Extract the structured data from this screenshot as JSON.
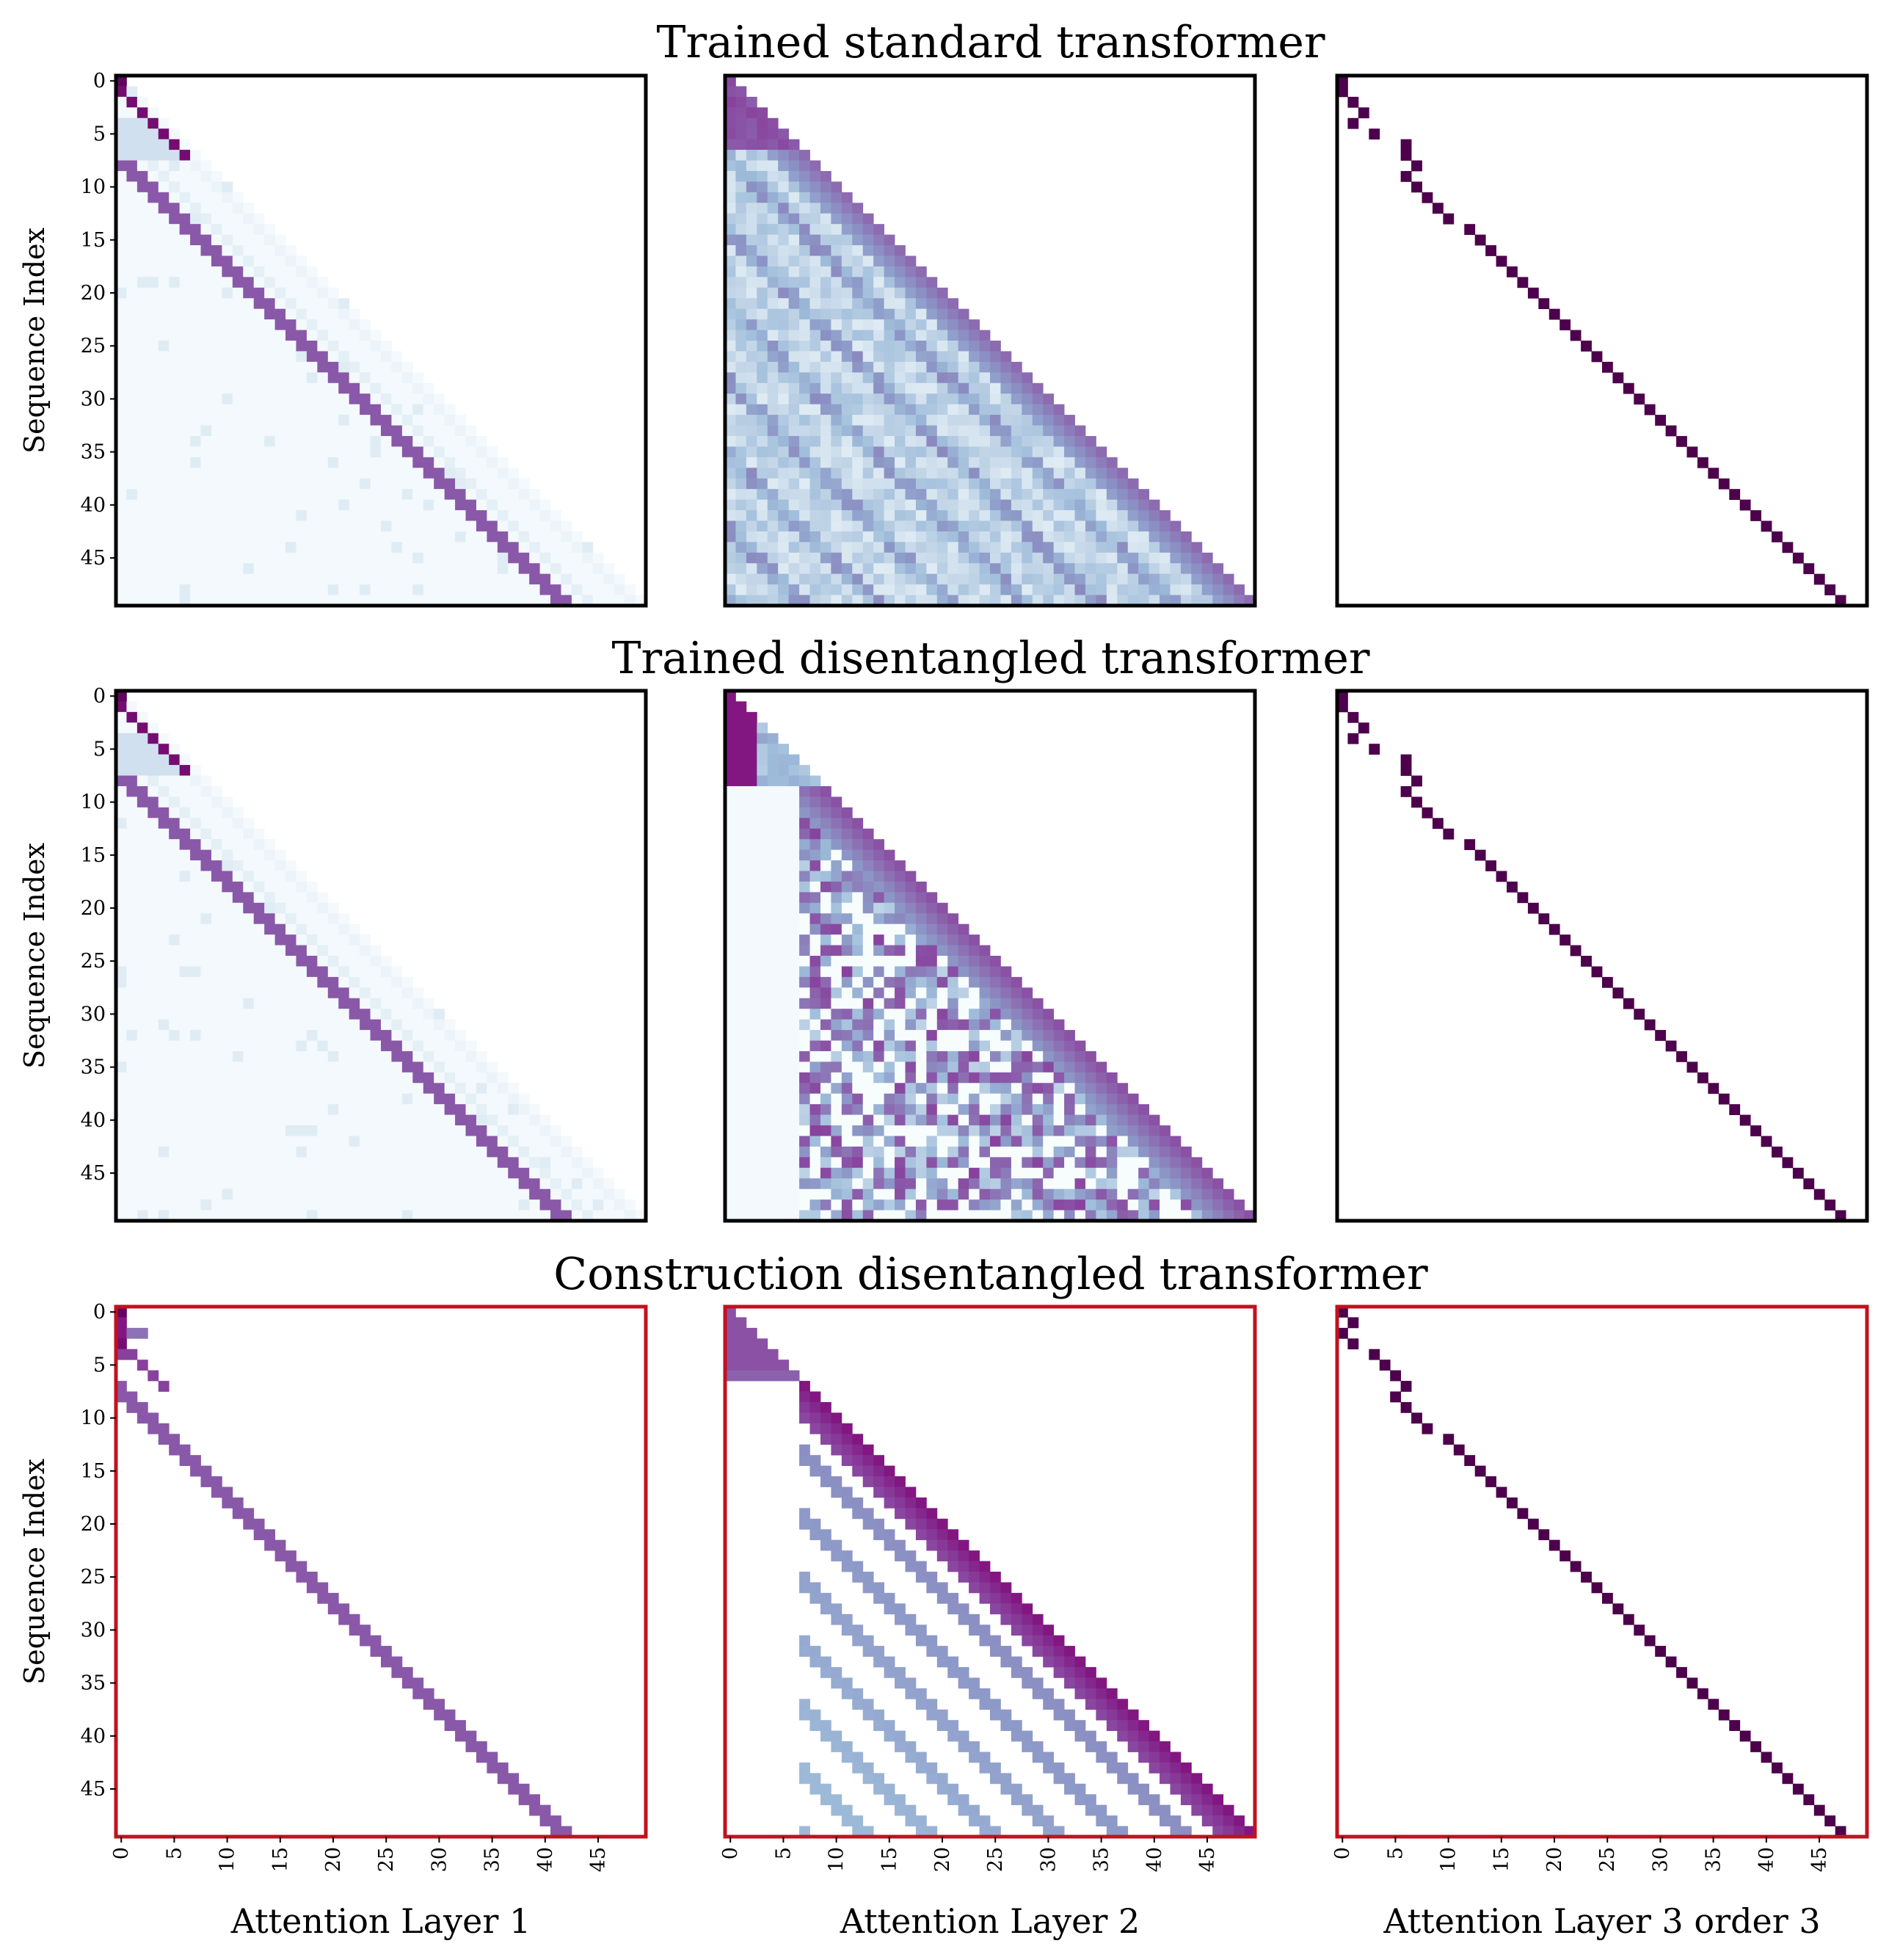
{
  "chart_data": {
    "type": "heatmap",
    "colormap": "BuPu",
    "sequence_length": 50,
    "tick_labels": [
      "0",
      "5",
      "10",
      "15",
      "20",
      "25",
      "30",
      "35",
      "40",
      "45"
    ],
    "ylabel": "Sequence Index",
    "column_labels": [
      "Attention Layer 1",
      "Attention Layer 2",
      "Attention Layer 3 order 3"
    ],
    "frame_colors": {
      "trained": "#000000",
      "construction": "#c1121f"
    },
    "rows": [
      {
        "title": "Trained standard transformer",
        "frame": "trained",
        "panels": [
          {
            "pattern": "layer1-trained",
            "x_tick_labels_shown": false,
            "y_tick_labels_shown": true
          },
          {
            "pattern": "layer2-standard",
            "x_tick_labels_shown": false,
            "y_tick_labels_shown": false
          },
          {
            "pattern": "layer3-trained",
            "x_tick_labels_shown": false,
            "y_tick_labels_shown": false
          }
        ]
      },
      {
        "title": "Trained disentangled transformer",
        "frame": "trained",
        "panels": [
          {
            "pattern": "layer1-trained",
            "x_tick_labels_shown": false,
            "y_tick_labels_shown": true
          },
          {
            "pattern": "layer2-disentangled",
            "x_tick_labels_shown": false,
            "y_tick_labels_shown": false
          },
          {
            "pattern": "layer3-trained",
            "x_tick_labels_shown": false,
            "y_tick_labels_shown": false
          }
        ]
      },
      {
        "title": "Construction disentangled transformer",
        "frame": "construction",
        "panels": [
          {
            "pattern": "layer1-construction",
            "x_tick_labels_shown": true,
            "y_tick_labels_shown": true
          },
          {
            "pattern": "layer2-construction",
            "x_tick_labels_shown": true,
            "y_tick_labels_shown": false
          },
          {
            "pattern": "layer3-construction",
            "x_tick_labels_shown": true,
            "y_tick_labels_shown": false
          }
        ]
      }
    ]
  }
}
